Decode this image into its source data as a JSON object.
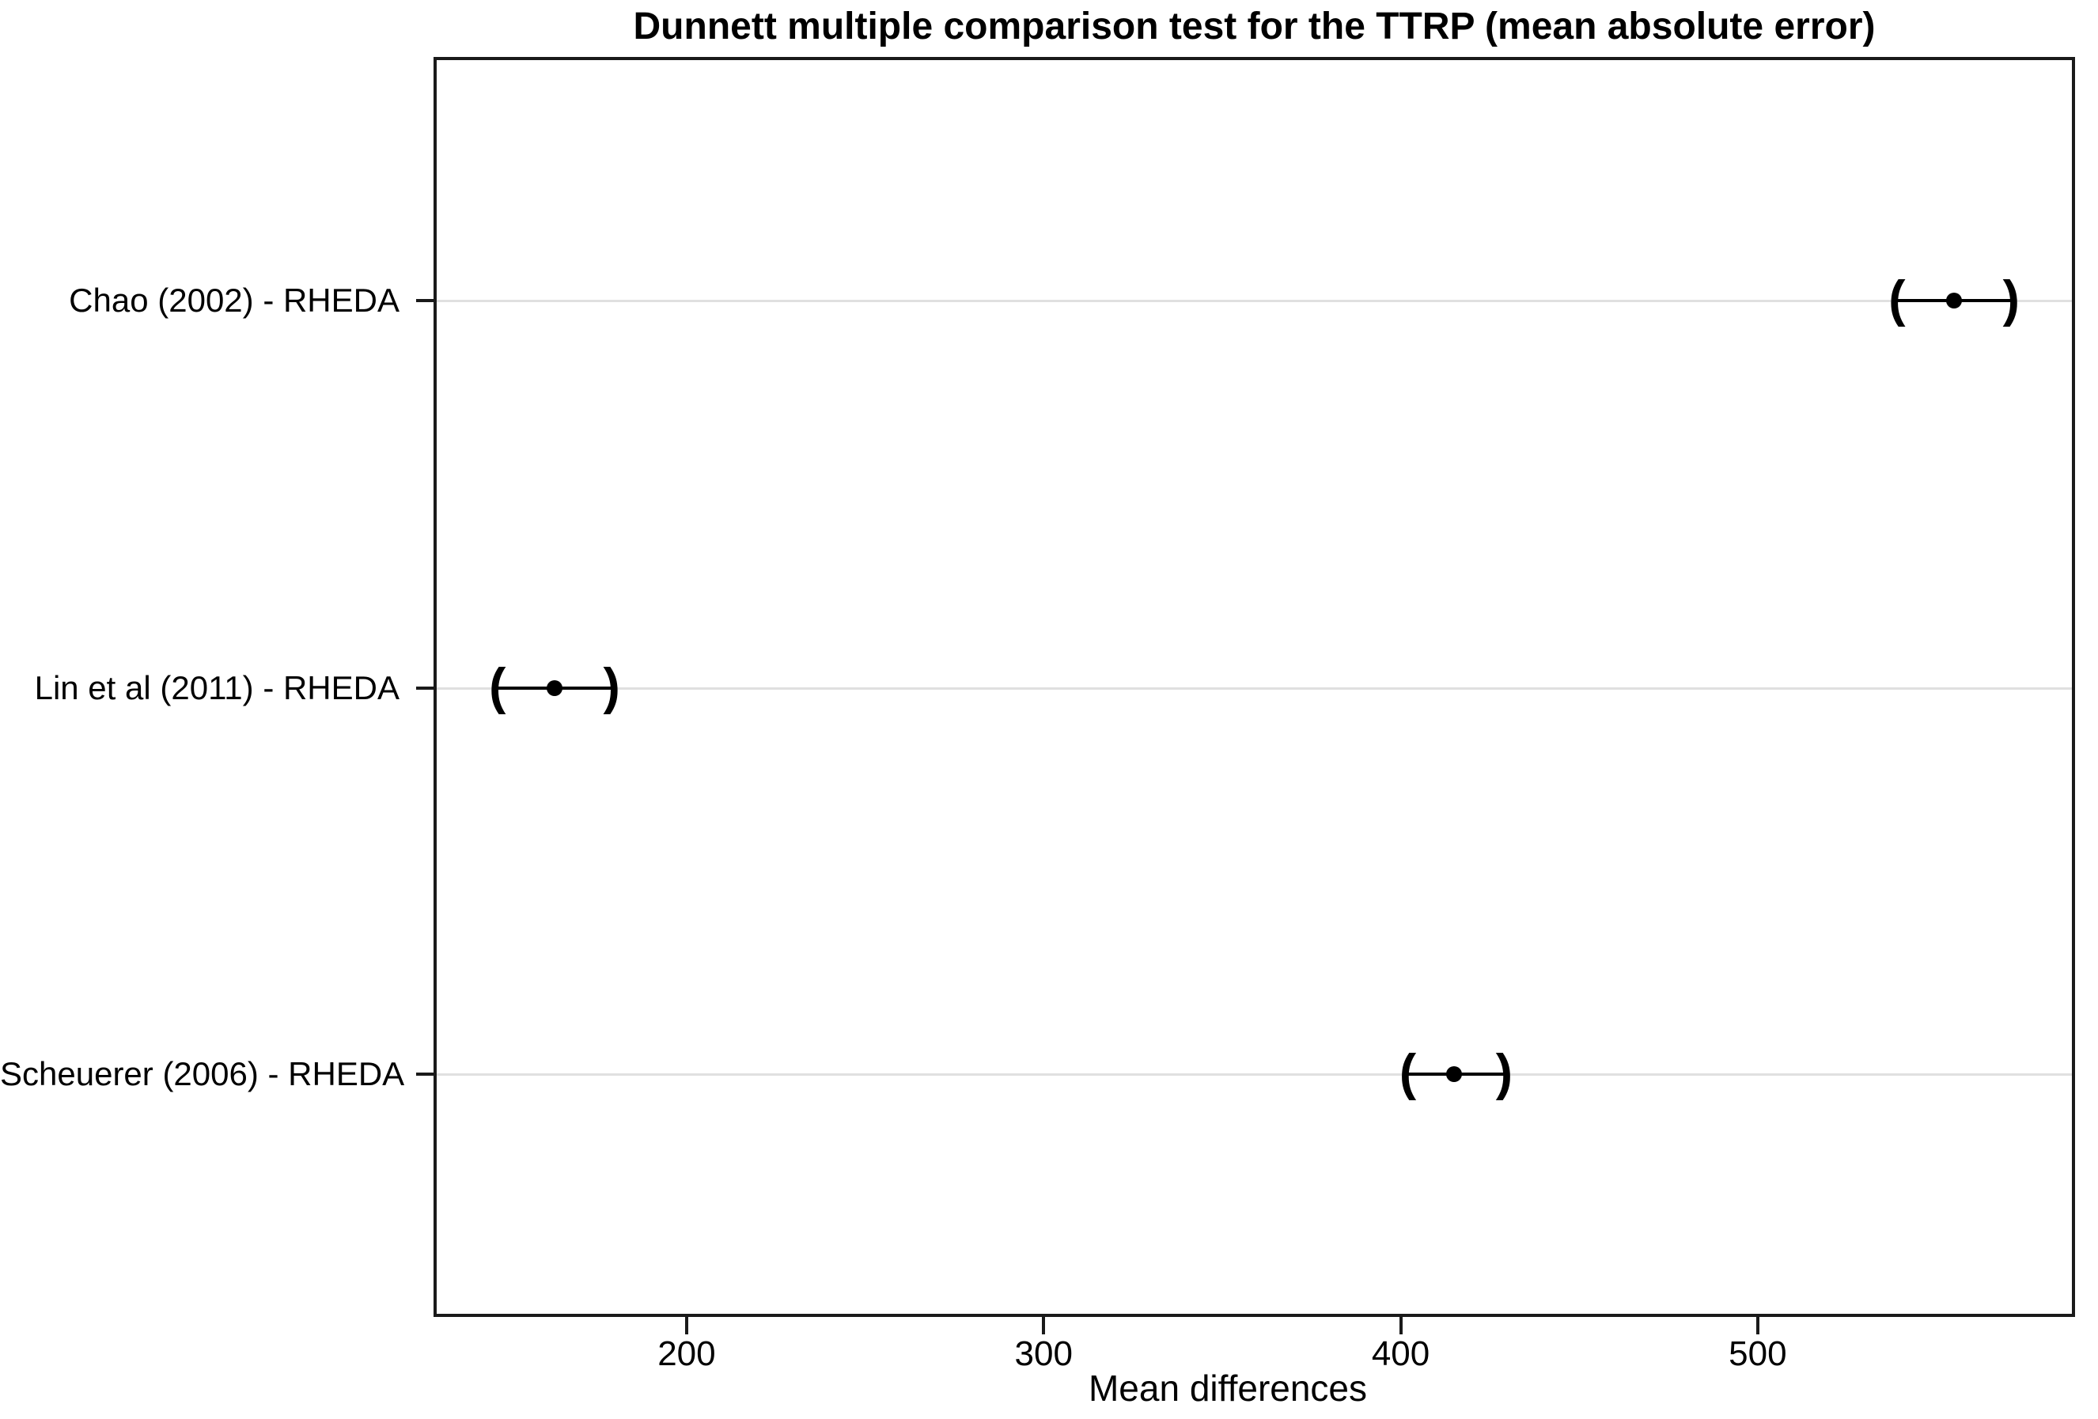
{
  "chart_data": {
    "type": "scatter",
    "variant": "dunnett-confidence-interval-plot",
    "title": "Dunnett multiple comparison test for the TTRP (mean absolute error)",
    "xlabel": "Mean differences",
    "ylabel": "",
    "xlim": [
      130,
      588
    ],
    "x_ticks": [
      200,
      300,
      400,
      500
    ],
    "grid": "horizontal gridline at each comparison row",
    "legend": false,
    "categories": [
      "Chao (2002) - RHEDA",
      "Lin et al (2011) - RHEDA",
      "Scheuerer (2006) - RHEDA"
    ],
    "row_fractions": [
      0.192,
      0.501,
      0.809
    ],
    "points": [
      {
        "label": "Chao (2002) - RHEDA",
        "mean": 555,
        "ci_lower": 539,
        "ci_upper": 571
      },
      {
        "label": "Lin et al (2011) - RHEDA",
        "mean": 163,
        "ci_lower": 147,
        "ci_upper": 179
      },
      {
        "label": "Scheuerer (2006) - RHEDA",
        "mean": 415,
        "ci_lower": 402,
        "ci_upper": 429
      }
    ],
    "marker": {
      "center": "filled-dot",
      "interval_ends": "parentheses"
    }
  },
  "colors": {
    "background": "#ffffff",
    "text": "#000000",
    "plot_border": "#1a1a1a",
    "gridline": "#e0e0e0",
    "interval": "#000000"
  }
}
